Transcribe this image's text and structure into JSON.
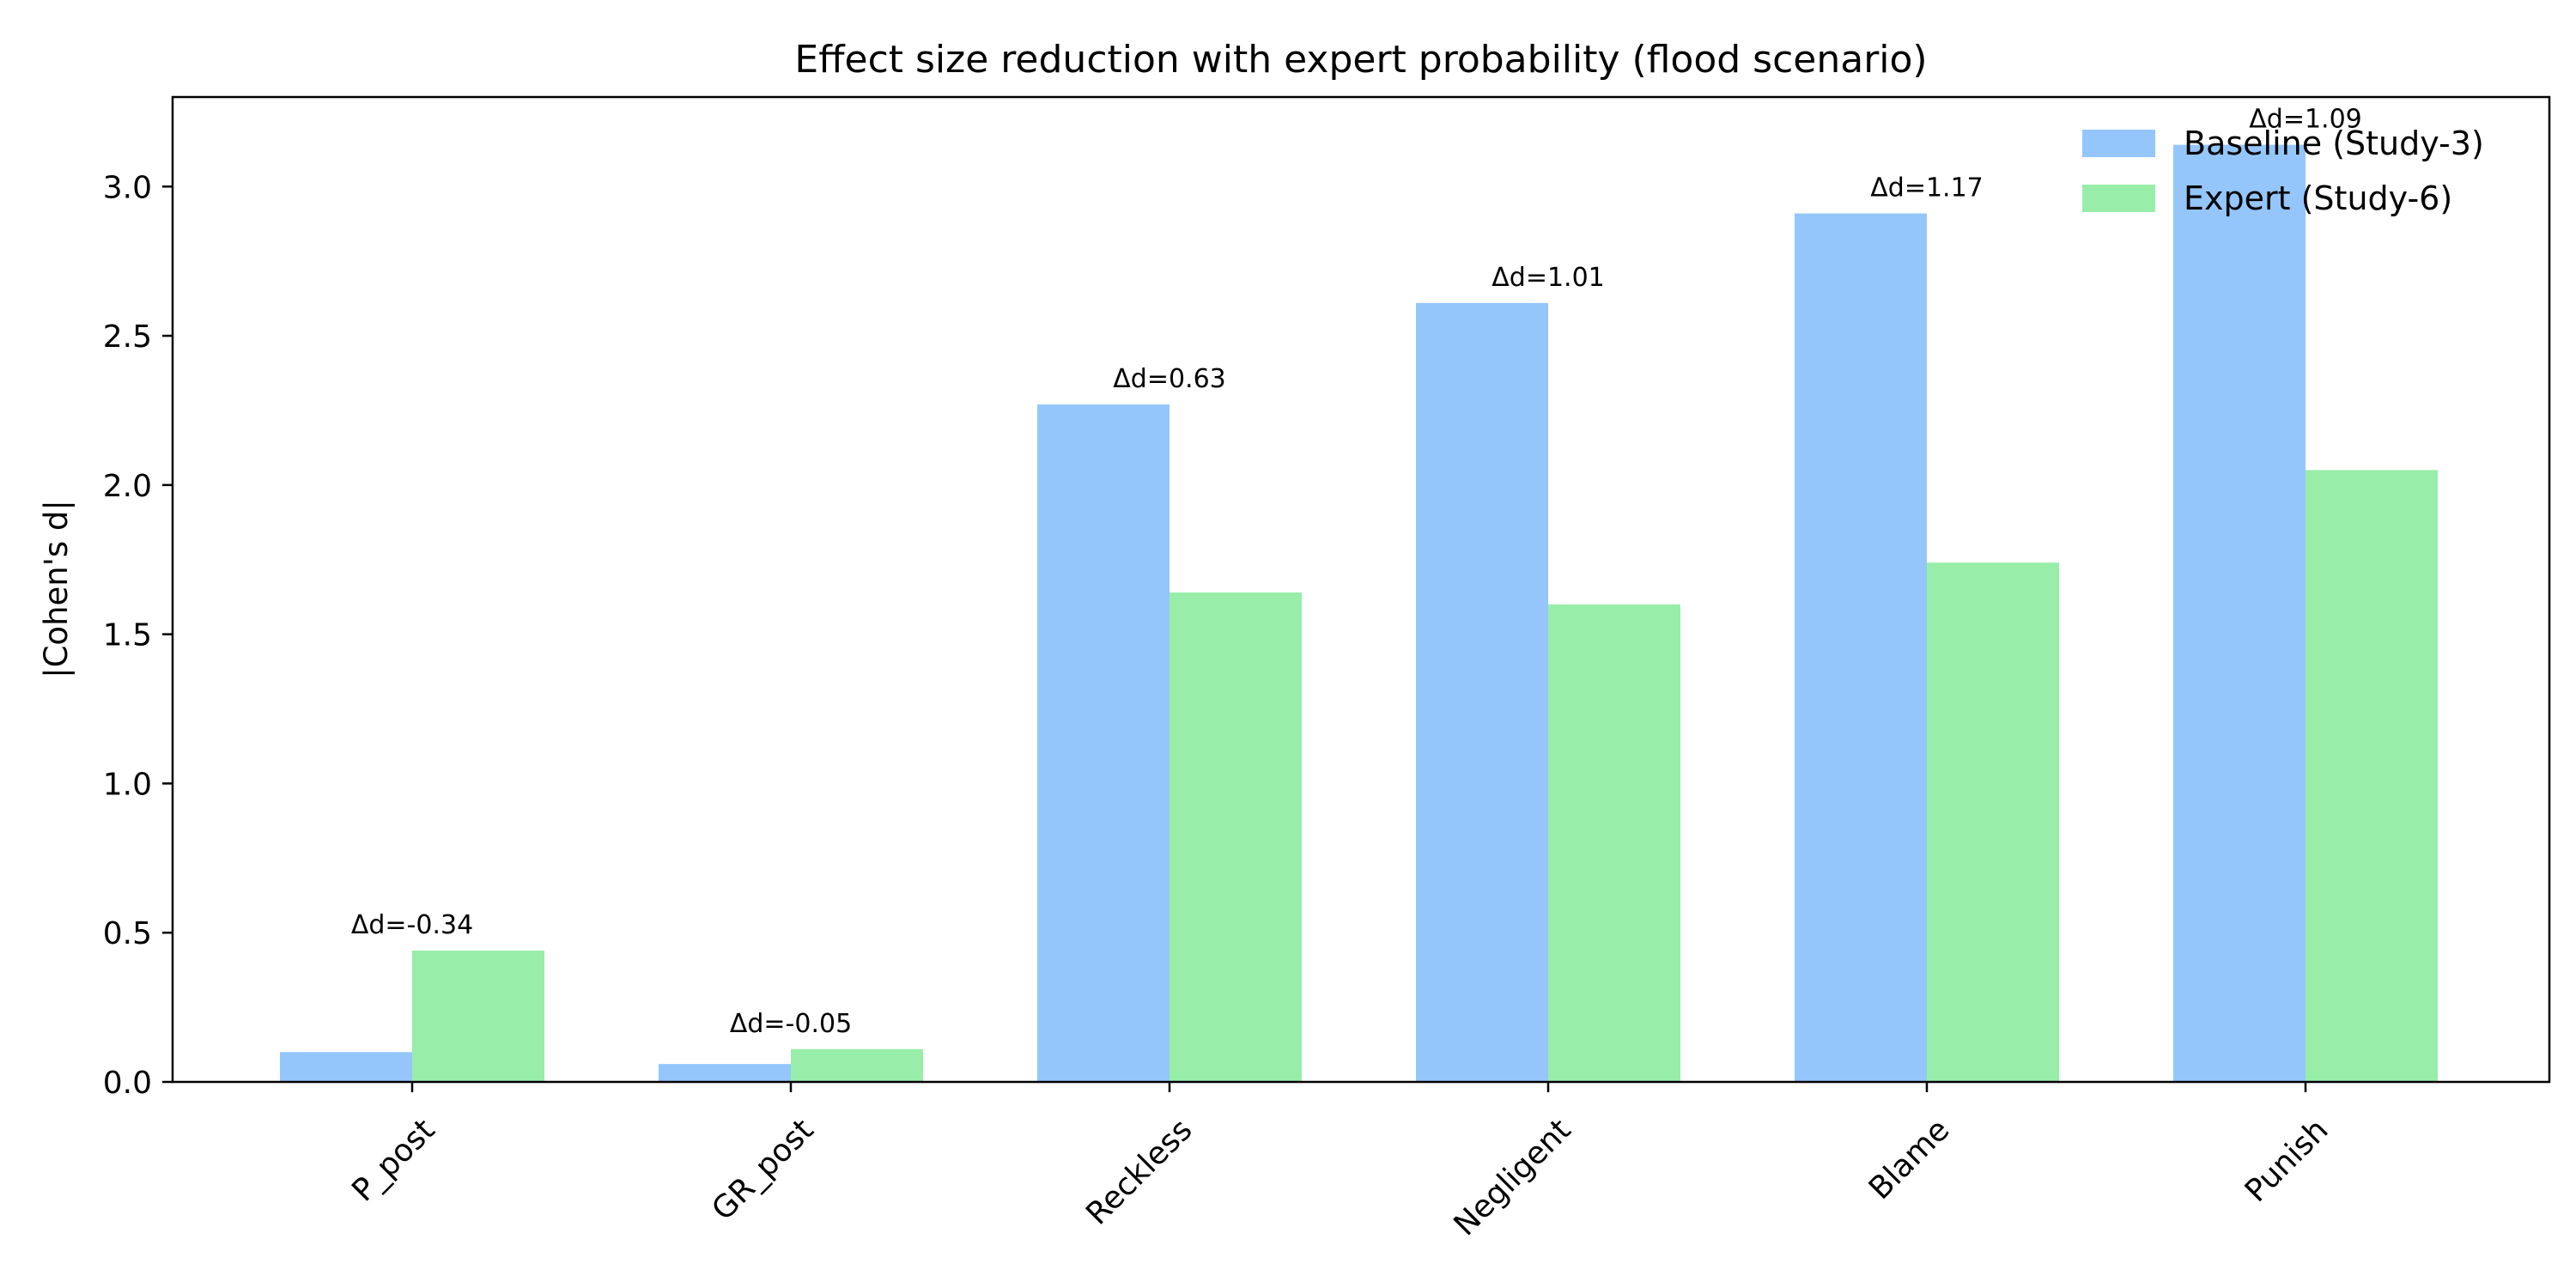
{
  "chart_data": {
    "type": "bar",
    "title": "Effect size reduction with expert probability (flood scenario)",
    "xlabel": "",
    "ylabel": "|Cohen's d|",
    "categories": [
      "P_post",
      "GR_post",
      "Reckless",
      "Negligent",
      "Blame",
      "Punish"
    ],
    "series": [
      {
        "name": "Baseline (Study-3)",
        "color": "#94c6fc",
        "values": [
          0.1,
          0.06,
          2.27,
          2.61,
          2.91,
          3.14
        ]
      },
      {
        "name": "Expert (Study-6)",
        "color": "#98eea8",
        "values": [
          0.44,
          0.11,
          1.64,
          1.6,
          1.74,
          2.05
        ]
      }
    ],
    "annotations": [
      "Δd=-0.34",
      "Δd=-0.05",
      "Δd=0.63",
      "Δd=1.01",
      "Δd=1.17",
      "Δd=1.09"
    ],
    "ylim": [
      0,
      3.3
    ],
    "yticks": [
      "0.0",
      "0.5",
      "1.0",
      "1.5",
      "2.0",
      "2.5",
      "3.0"
    ],
    "grid": false,
    "legend_position": "top-right"
  }
}
